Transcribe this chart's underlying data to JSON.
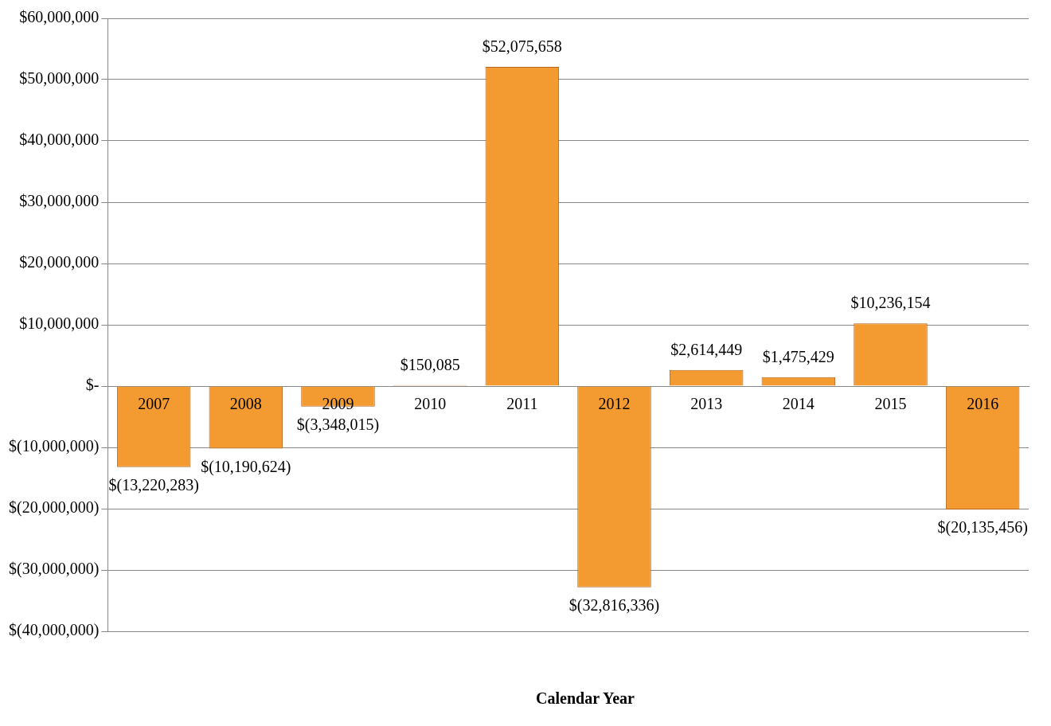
{
  "chart_data": {
    "type": "bar",
    "xlabel": "Calendar Year",
    "categories": [
      "2007",
      "2008",
      "2009",
      "2010",
      "2011",
      "2012",
      "2013",
      "2014",
      "2015",
      "2016"
    ],
    "values": [
      -13220283,
      -10190624,
      -3348015,
      150085,
      52075658,
      -32816336,
      2614449,
      1475429,
      10236154,
      -20135456
    ],
    "value_labels": [
      "$(13,220,283)",
      "$(10,190,624)",
      "$(3,348,015)",
      "$150,085",
      "$52,075,658",
      "$(32,816,336)",
      "$2,614,449",
      "$1,475,429",
      "$10,236,154",
      "$(20,135,456)"
    ],
    "color": "#f39a30",
    "ylim": [
      -40000000,
      60000000
    ],
    "yticks": [
      {
        "value": -40000000,
        "label": "$(40,000,000)"
      },
      {
        "value": -30000000,
        "label": "$(30,000,000)"
      },
      {
        "value": -20000000,
        "label": "$(20,000,000)"
      },
      {
        "value": -10000000,
        "label": "$(10,000,000)"
      },
      {
        "value": 0,
        "label": "$-"
      },
      {
        "value": 10000000,
        "label": "$10,000,000"
      },
      {
        "value": 20000000,
        "label": "$20,000,000"
      },
      {
        "value": 30000000,
        "label": "$30,000,000"
      },
      {
        "value": 40000000,
        "label": "$40,000,000"
      },
      {
        "value": 50000000,
        "label": "$50,000,000"
      },
      {
        "value": 60000000,
        "label": "$60,000,000"
      }
    ],
    "grid": "y",
    "legend": false
  }
}
